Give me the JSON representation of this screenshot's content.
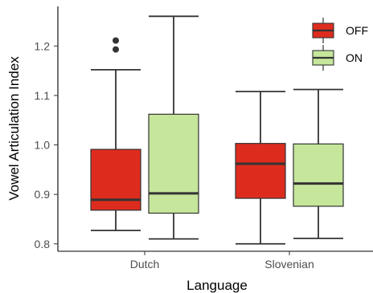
{
  "chart_data": {
    "type": "boxplot",
    "xlabel": "Language",
    "ylabel": "Vowel Articulation Index",
    "ylim": [
      0.785,
      1.28
    ],
    "yticks": [
      0.8,
      0.9,
      1.0,
      1.1,
      1.2
    ],
    "ytick_labels": [
      "0.8",
      "0.9",
      "1.0",
      "1.1",
      "1.2"
    ],
    "categories": [
      "Dutch",
      "Slovenian"
    ],
    "legend": {
      "position": "top-right"
    },
    "grid": false,
    "series": [
      {
        "name": "OFF",
        "color": "#dd2c1e",
        "boxes": [
          {
            "category": "Dutch",
            "whisker_low": 0.827,
            "q1": 0.868,
            "median": 0.889,
            "q3": 0.991,
            "whisker_high": 1.152,
            "outliers": [
              1.193,
              1.211
            ]
          },
          {
            "category": "Slovenian",
            "whisker_low": 0.8,
            "q1": 0.892,
            "median": 0.962,
            "q3": 1.003,
            "whisker_high": 1.108,
            "outliers": []
          }
        ]
      },
      {
        "name": "ON",
        "color": "#c5e69b",
        "boxes": [
          {
            "category": "Dutch",
            "whisker_low": 0.81,
            "q1": 0.862,
            "median": 0.902,
            "q3": 1.062,
            "whisker_high": 1.26,
            "outliers": []
          },
          {
            "category": "Slovenian",
            "whisker_low": 0.811,
            "q1": 0.876,
            "median": 0.922,
            "q3": 1.002,
            "whisker_high": 1.112,
            "outliers": []
          }
        ]
      }
    ]
  }
}
